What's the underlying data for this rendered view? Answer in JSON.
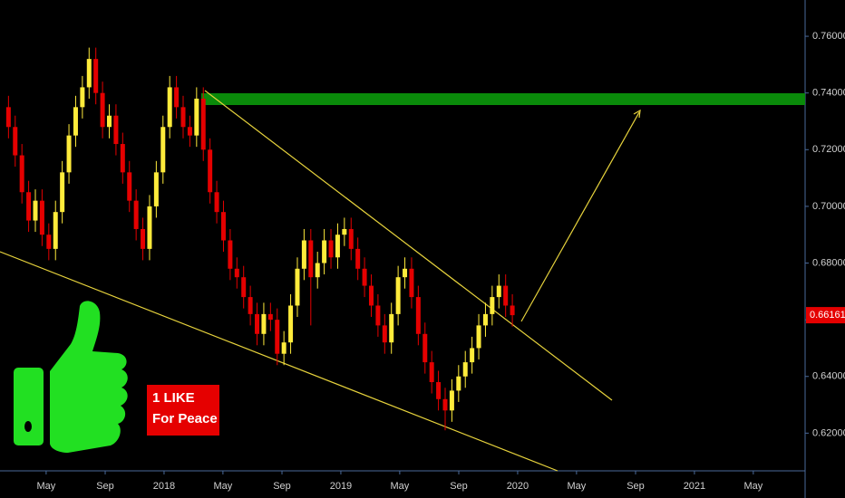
{
  "chart_data": {
    "type": "candlestick",
    "x": [
      2017.12,
      2017.158,
      2017.196,
      2017.234,
      2017.272,
      2017.31,
      2017.348,
      2017.386,
      2017.424,
      2017.462,
      2017.5,
      2017.538,
      2017.576,
      2017.614,
      2017.652,
      2017.69,
      2017.728,
      2017.766,
      2017.804,
      2017.842,
      2017.88,
      2017.918,
      2017.956,
      2017.994,
      2018.032,
      2018.07,
      2018.108,
      2018.146,
      2018.184,
      2018.222,
      2018.26,
      2018.298,
      2018.336,
      2018.374,
      2018.412,
      2018.45,
      2018.488,
      2018.526,
      2018.564,
      2018.602,
      2018.64,
      2018.678,
      2018.716,
      2018.754,
      2018.792,
      2018.83,
      2018.868,
      2018.906,
      2018.944,
      2018.982,
      2019.02,
      2019.058,
      2019.096,
      2019.134,
      2019.172,
      2019.21,
      2019.248,
      2019.286,
      2019.324,
      2019.362,
      2019.4,
      2019.438,
      2019.476,
      2019.514,
      2019.552,
      2019.59,
      2019.628,
      2019.666,
      2019.704,
      2019.742,
      2019.78,
      2019.818,
      2019.856,
      2019.894,
      2019.932,
      2019.97
    ],
    "open": [
      0.735,
      0.728,
      0.718,
      0.705,
      0.695,
      0.702,
      0.69,
      0.685,
      0.698,
      0.712,
      0.725,
      0.735,
      0.742,
      0.752,
      0.74,
      0.728,
      0.732,
      0.722,
      0.712,
      0.702,
      0.692,
      0.685,
      0.7,
      0.712,
      0.728,
      0.742,
      0.735,
      0.728,
      0.725,
      0.738,
      0.72,
      0.705,
      0.698,
      0.688,
      0.678,
      0.675,
      0.668,
      0.662,
      0.655,
      0.662,
      0.66,
      0.648,
      0.652,
      0.665,
      0.678,
      0.688,
      0.675,
      0.68,
      0.688,
      0.682,
      0.69,
      0.692,
      0.685,
      0.678,
      0.672,
      0.665,
      0.658,
      0.652,
      0.662,
      0.675,
      0.678,
      0.668,
      0.655,
      0.645,
      0.638,
      0.632,
      0.628,
      0.635,
      0.64,
      0.645,
      0.65,
      0.658,
      0.662,
      0.668,
      0.672,
      0.665
    ],
    "high": [
      0.739,
      0.732,
      0.722,
      0.709,
      0.706,
      0.706,
      0.694,
      0.702,
      0.716,
      0.729,
      0.739,
      0.746,
      0.756,
      0.756,
      0.744,
      0.736,
      0.736,
      0.726,
      0.716,
      0.706,
      0.696,
      0.704,
      0.716,
      0.732,
      0.746,
      0.746,
      0.739,
      0.732,
      0.742,
      0.742,
      0.724,
      0.709,
      0.702,
      0.692,
      0.682,
      0.679,
      0.672,
      0.666,
      0.666,
      0.666,
      0.664,
      0.656,
      0.669,
      0.682,
      0.692,
      0.692,
      0.684,
      0.692,
      0.692,
      0.694,
      0.696,
      0.696,
      0.689,
      0.682,
      0.676,
      0.669,
      0.662,
      0.666,
      0.679,
      0.682,
      0.682,
      0.672,
      0.659,
      0.649,
      0.642,
      0.636,
      0.639,
      0.644,
      0.649,
      0.654,
      0.662,
      0.666,
      0.672,
      0.676,
      0.676,
      0.669
    ],
    "low": [
      0.724,
      0.714,
      0.701,
      0.691,
      0.691,
      0.686,
      0.681,
      0.681,
      0.694,
      0.708,
      0.721,
      0.731,
      0.738,
      0.736,
      0.724,
      0.724,
      0.718,
      0.708,
      0.698,
      0.688,
      0.681,
      0.681,
      0.696,
      0.708,
      0.724,
      0.731,
      0.724,
      0.721,
      0.721,
      0.716,
      0.701,
      0.694,
      0.684,
      0.674,
      0.671,
      0.664,
      0.658,
      0.651,
      0.651,
      0.656,
      0.644,
      0.644,
      0.648,
      0.661,
      0.674,
      0.658,
      0.671,
      0.676,
      0.678,
      0.678,
      0.686,
      0.681,
      0.674,
      0.668,
      0.661,
      0.654,
      0.648,
      0.648,
      0.658,
      0.671,
      0.664,
      0.651,
      0.641,
      0.634,
      0.628,
      0.621,
      0.624,
      0.631,
      0.636,
      0.641,
      0.646,
      0.654,
      0.658,
      0.664,
      0.661,
      0.6576
    ],
    "close": [
      0.728,
      0.718,
      0.705,
      0.695,
      0.702,
      0.69,
      0.685,
      0.698,
      0.712,
      0.725,
      0.735,
      0.742,
      0.752,
      0.74,
      0.728,
      0.732,
      0.722,
      0.712,
      0.702,
      0.692,
      0.685,
      0.7,
      0.712,
      0.728,
      0.742,
      0.735,
      0.728,
      0.725,
      0.738,
      0.72,
      0.705,
      0.698,
      0.688,
      0.678,
      0.675,
      0.668,
      0.662,
      0.655,
      0.662,
      0.66,
      0.648,
      0.652,
      0.665,
      0.678,
      0.688,
      0.675,
      0.68,
      0.688,
      0.682,
      0.69,
      0.692,
      0.685,
      0.678,
      0.672,
      0.665,
      0.658,
      0.652,
      0.662,
      0.675,
      0.678,
      0.668,
      0.655,
      0.645,
      0.638,
      0.632,
      0.628,
      0.635,
      0.64,
      0.645,
      0.65,
      0.658,
      0.662,
      0.668,
      0.672,
      0.665,
      0.66161
    ],
    "up_color": "#ffeb3b",
    "down_color": "#e50000",
    "xlim": [
      2017.072,
      2021.626
    ],
    "xticks": [
      {
        "value": 2017.333,
        "label": "May"
      },
      {
        "value": 2017.667,
        "label": "Sep"
      },
      {
        "value": 2018,
        "label": "2018"
      },
      {
        "value": 2018.333,
        "label": "May"
      },
      {
        "value": 2018.667,
        "label": "Sep"
      },
      {
        "value": 2019,
        "label": "2019"
      },
      {
        "value": 2019.333,
        "label": "May"
      },
      {
        "value": 2019.667,
        "label": "Sep"
      },
      {
        "value": 2020,
        "label": "2020"
      },
      {
        "value": 2020.333,
        "label": "May"
      },
      {
        "value": 2020.667,
        "label": "Sep"
      },
      {
        "value": 2021,
        "label": "2021"
      },
      {
        "value": 2021.333,
        "label": "May"
      }
    ],
    "ylim": [
      0.6067,
      0.7728
    ],
    "yticks": [
      {
        "value": 0.62,
        "label": "0.62000"
      },
      {
        "value": 0.64,
        "label": "0.64000"
      },
      {
        "value": 0.66,
        "label": "0.66000"
      },
      {
        "value": 0.68,
        "label": "0.68000"
      },
      {
        "value": 0.7,
        "label": "0.70000"
      },
      {
        "value": 0.72,
        "label": "0.72000"
      },
      {
        "value": 0.74,
        "label": "0.74000"
      },
      {
        "value": 0.76,
        "label": "0.76000"
      }
    ],
    "last_price": {
      "value": 0.66161,
      "label": "0.66161"
    },
    "annotations": [
      "1 LIKE",
      "For Peace"
    ]
  }
}
